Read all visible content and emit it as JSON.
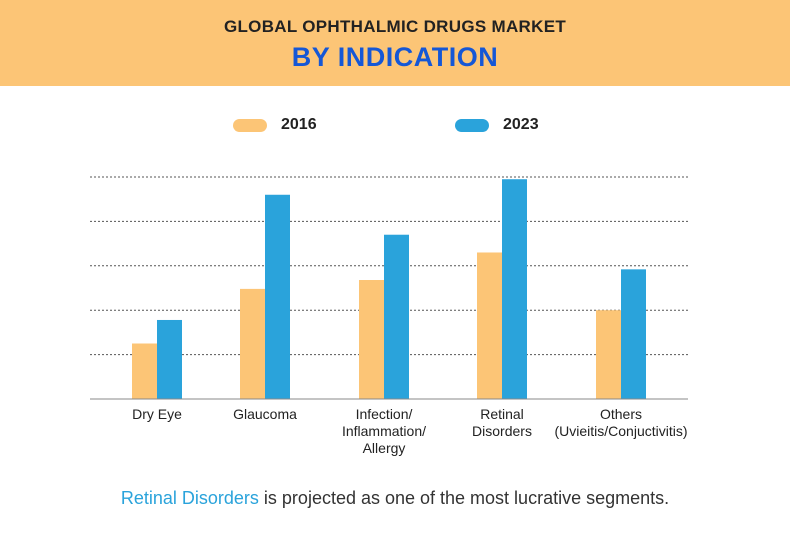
{
  "header": {
    "title": "GLOBAL OPHTHALMIC DRUGS MARKET",
    "subtitle": "BY INDICATION"
  },
  "footer": {
    "highlight": "Retinal Disorders",
    "rest": " is projected as one of the most lucrative segments."
  },
  "colors": {
    "banner": "#fcc576",
    "series_2016": "#fcc576",
    "series_2023": "#2aa3db",
    "subtitle": "#1557d6"
  },
  "chart_data": {
    "type": "bar",
    "categories": [
      [
        "Dry Eye"
      ],
      [
        "Glaucoma"
      ],
      [
        "Infection/",
        "Inflammation/",
        "Allergy"
      ],
      [
        "Retinal",
        "Disorders"
      ],
      [
        "Others",
        "(Uvieitis/Conjuctivitis)"
      ]
    ],
    "series": [
      {
        "name": "2016",
        "values": [
          1.25,
          2.48,
          2.68,
          3.3,
          2.0
        ]
      },
      {
        "name": "2023",
        "values": [
          1.78,
          4.6,
          3.7,
          4.95,
          2.92
        ]
      }
    ],
    "ylim": [
      0,
      5
    ],
    "grid": true,
    "legend": "top-center",
    "title": "",
    "xlabel": "",
    "ylabel": ""
  }
}
